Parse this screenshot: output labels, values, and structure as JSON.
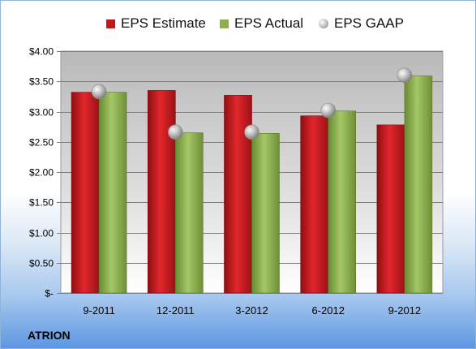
{
  "chart_data": {
    "type": "bar",
    "categories": [
      "9-2011",
      "12-2011",
      "3-2012",
      "6-2012",
      "9-2012"
    ],
    "series": [
      {
        "name": "EPS Estimate",
        "type": "bar",
        "color": "#c0181d",
        "values": [
          3.32,
          3.35,
          3.27,
          2.93,
          2.78
        ]
      },
      {
        "name": "EPS Actual",
        "type": "bar",
        "color": "#8db04c",
        "values": [
          3.32,
          2.65,
          2.64,
          3.01,
          3.59
        ]
      },
      {
        "name": "EPS GAAP",
        "type": "scatter",
        "color": "#b8b8b8",
        "values": [
          3.33,
          2.66,
          2.66,
          3.02,
          3.6
        ]
      }
    ],
    "ylim": [
      0,
      4.0
    ],
    "yticks": [
      0,
      0.5,
      1.0,
      1.5,
      2.0,
      2.5,
      3.0,
      3.5,
      4.0
    ],
    "ytick_labels": [
      "$-",
      "$0.50",
      "$1.00",
      "$1.50",
      "$2.00",
      "$2.50",
      "$3.00",
      "$3.50",
      "$4.00"
    ],
    "grid": true,
    "legend_position": "top"
  },
  "brand_label": "ATRION"
}
